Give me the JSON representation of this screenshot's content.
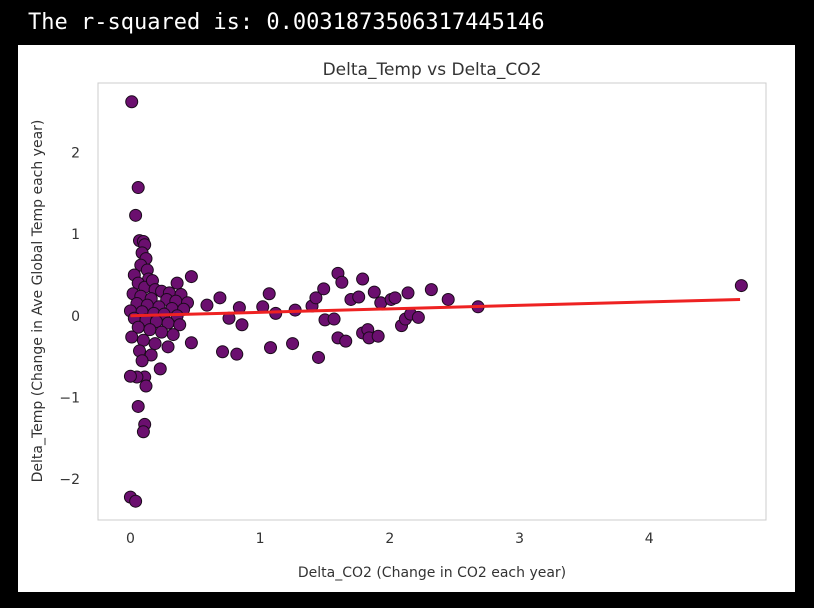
{
  "output": {
    "text": "The r-squared is: 0.0031873506317445146"
  },
  "chart_data": {
    "type": "scatter",
    "title": "Delta_Temp vs Delta_CO2",
    "xlabel": "Delta_CO2 (Change in CO2 each year)",
    "ylabel": "Delta_Temp (Change in Ave Global Temp each year)",
    "xlim": [
      -0.25,
      4.9
    ],
    "ylim": [
      -2.5,
      2.85
    ],
    "xticks": [
      0,
      1,
      2,
      3,
      4
    ],
    "yticks": [
      -2,
      -1,
      0,
      1,
      2
    ],
    "grid": false,
    "colors": {
      "marker_fill": "#6b0f6f",
      "marker_edge": "#1a0a1a",
      "regression_line": "#ee2222",
      "axes_frame": "#cccccc"
    },
    "regression": {
      "x": [
        0,
        4.7
      ],
      "y": [
        0.0,
        0.2
      ]
    },
    "points": [
      {
        "x": 0.01,
        "y": 2.62
      },
      {
        "x": 0.06,
        "y": 1.57
      },
      {
        "x": 0.04,
        "y": 1.23
      },
      {
        "x": 0.07,
        "y": 0.92
      },
      {
        "x": 0.1,
        "y": 0.91
      },
      {
        "x": 0.11,
        "y": 0.87
      },
      {
        "x": 0.09,
        "y": 0.77
      },
      {
        "x": 0.12,
        "y": 0.7
      },
      {
        "x": 0.08,
        "y": 0.62
      },
      {
        "x": 0.13,
        "y": 0.56
      },
      {
        "x": 0.03,
        "y": 0.5
      },
      {
        "x": 0.14,
        "y": 0.45
      },
      {
        "x": 0.06,
        "y": 0.4
      },
      {
        "x": 0.11,
        "y": 0.35
      },
      {
        "x": 0.17,
        "y": 0.43
      },
      {
        "x": 0.36,
        "y": 0.4
      },
      {
        "x": 0.47,
        "y": 0.48
      },
      {
        "x": 0.19,
        "y": 0.32
      },
      {
        "x": 0.24,
        "y": 0.3
      },
      {
        "x": 0.3,
        "y": 0.28
      },
      {
        "x": 0.39,
        "y": 0.26
      },
      {
        "x": 0.02,
        "y": 0.27
      },
      {
        "x": 0.08,
        "y": 0.24
      },
      {
        "x": 0.16,
        "y": 0.21
      },
      {
        "x": 0.28,
        "y": 0.2
      },
      {
        "x": 0.35,
        "y": 0.18
      },
      {
        "x": 0.44,
        "y": 0.16
      },
      {
        "x": 0.05,
        "y": 0.15
      },
      {
        "x": 0.13,
        "y": 0.13
      },
      {
        "x": 0.22,
        "y": 0.11
      },
      {
        "x": 0.32,
        "y": 0.09
      },
      {
        "x": 0.41,
        "y": 0.08
      },
      {
        "x": 0.0,
        "y": 0.06
      },
      {
        "x": 0.09,
        "y": 0.05
      },
      {
        "x": 0.18,
        "y": 0.03
      },
      {
        "x": 0.26,
        "y": 0.02
      },
      {
        "x": 0.36,
        "y": 0.0
      },
      {
        "x": 0.03,
        "y": -0.03
      },
      {
        "x": 0.12,
        "y": -0.05
      },
      {
        "x": 0.2,
        "y": -0.07
      },
      {
        "x": 0.29,
        "y": -0.09
      },
      {
        "x": 0.38,
        "y": -0.11
      },
      {
        "x": 0.06,
        "y": -0.14
      },
      {
        "x": 0.15,
        "y": -0.17
      },
      {
        "x": 0.24,
        "y": -0.2
      },
      {
        "x": 0.33,
        "y": -0.23
      },
      {
        "x": 0.01,
        "y": -0.26
      },
      {
        "x": 0.1,
        "y": -0.3
      },
      {
        "x": 0.19,
        "y": -0.34
      },
      {
        "x": 0.29,
        "y": -0.38
      },
      {
        "x": 0.07,
        "y": -0.43
      },
      {
        "x": 0.16,
        "y": -0.48
      },
      {
        "x": 0.09,
        "y": -0.55
      },
      {
        "x": 0.23,
        "y": -0.65
      },
      {
        "x": 0.11,
        "y": -0.75
      },
      {
        "x": 0.12,
        "y": -0.86
      },
      {
        "x": 0.05,
        "y": -0.75
      },
      {
        "x": 0.0,
        "y": -0.74
      },
      {
        "x": 0.06,
        "y": -1.11
      },
      {
        "x": 0.11,
        "y": -1.33
      },
      {
        "x": 0.1,
        "y": -1.42
      },
      {
        "x": 0.0,
        "y": -2.22
      },
      {
        "x": 0.04,
        "y": -2.27
      },
      {
        "x": 0.47,
        "y": -0.33
      },
      {
        "x": 0.59,
        "y": 0.13
      },
      {
        "x": 0.69,
        "y": 0.22
      },
      {
        "x": 0.71,
        "y": -0.44
      },
      {
        "x": 0.76,
        "y": -0.03
      },
      {
        "x": 0.82,
        "y": -0.47
      },
      {
        "x": 0.84,
        "y": 0.1
      },
      {
        "x": 0.86,
        "y": -0.11
      },
      {
        "x": 1.02,
        "y": 0.11
      },
      {
        "x": 1.07,
        "y": 0.27
      },
      {
        "x": 1.08,
        "y": -0.39
      },
      {
        "x": 1.12,
        "y": 0.03
      },
      {
        "x": 1.25,
        "y": -0.34
      },
      {
        "x": 1.27,
        "y": 0.07
      },
      {
        "x": 1.4,
        "y": 0.12
      },
      {
        "x": 1.43,
        "y": 0.22
      },
      {
        "x": 1.45,
        "y": -0.51
      },
      {
        "x": 1.49,
        "y": 0.33
      },
      {
        "x": 1.5,
        "y": -0.05
      },
      {
        "x": 1.57,
        "y": -0.04
      },
      {
        "x": 1.6,
        "y": 0.52
      },
      {
        "x": 1.6,
        "y": -0.27
      },
      {
        "x": 1.63,
        "y": 0.41
      },
      {
        "x": 1.66,
        "y": -0.31
      },
      {
        "x": 1.7,
        "y": 0.2
      },
      {
        "x": 1.76,
        "y": 0.23
      },
      {
        "x": 1.79,
        "y": 0.45
      },
      {
        "x": 1.79,
        "y": -0.21
      },
      {
        "x": 1.83,
        "y": -0.17
      },
      {
        "x": 1.84,
        "y": -0.27
      },
      {
        "x": 1.88,
        "y": 0.29
      },
      {
        "x": 1.91,
        "y": -0.25
      },
      {
        "x": 1.93,
        "y": 0.16
      },
      {
        "x": 2.01,
        "y": 0.2
      },
      {
        "x": 2.04,
        "y": 0.22
      },
      {
        "x": 2.09,
        "y": -0.12
      },
      {
        "x": 2.12,
        "y": -0.04
      },
      {
        "x": 2.14,
        "y": 0.28
      },
      {
        "x": 2.16,
        "y": 0.02
      },
      {
        "x": 2.22,
        "y": -0.02
      },
      {
        "x": 2.32,
        "y": 0.32
      },
      {
        "x": 2.45,
        "y": 0.2
      },
      {
        "x": 2.68,
        "y": 0.11
      },
      {
        "x": 4.71,
        "y": 0.37
      }
    ]
  }
}
